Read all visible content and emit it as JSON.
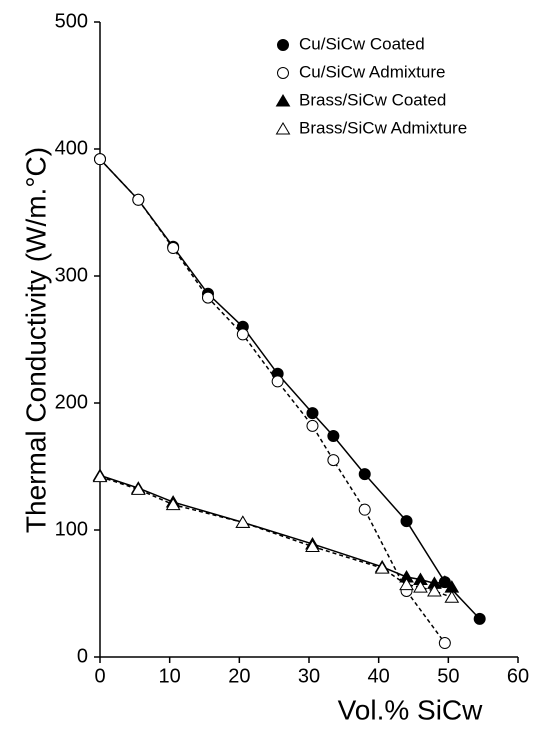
{
  "chart_data": {
    "type": "scatter",
    "x_label": "Vol.% SiCw",
    "y_label": "Thermal Conductivity (W/m.°C)",
    "xlim": [
      0,
      60
    ],
    "xticks": [
      0,
      10,
      20,
      30,
      40,
      50,
      60
    ],
    "ylim": [
      0,
      500
    ],
    "yticks": [
      0,
      100,
      200,
      300,
      400,
      500
    ],
    "legend": "upper right",
    "series": [
      {
        "name": "Cu/SiCw Coated",
        "color": "#000000",
        "marker": "circle",
        "filled": true,
        "line": "solid",
        "x": [
          0,
          5.5,
          10.5,
          15.5,
          20.5,
          25.5,
          30.5,
          33.5,
          38,
          44,
          49.5,
          54.5
        ],
        "values": [
          392,
          360,
          323,
          286,
          260,
          223,
          192,
          174,
          144,
          107,
          59,
          30
        ]
      },
      {
        "name": "Cu/SiCw Admixture",
        "color": "#000000",
        "marker": "circle",
        "filled": false,
        "line": "dashed",
        "x": [
          0,
          5.5,
          10.5,
          15.5,
          20.5,
          25.5,
          30.5,
          33.5,
          38,
          44,
          49.5
        ],
        "values": [
          392,
          360,
          322,
          283,
          254,
          217,
          182,
          155,
          116,
          52,
          11
        ]
      },
      {
        "name": "Brass/SiCw Coated",
        "color": "#000000",
        "marker": "triangle",
        "filled": true,
        "line": "solid",
        "x": [
          0,
          5.5,
          10.5,
          20.5,
          30.5,
          40.5,
          44,
          46,
          48,
          49.5,
          50.5
        ],
        "values": [
          143,
          133,
          122,
          106,
          89,
          71,
          63,
          61,
          58,
          59,
          55
        ]
      },
      {
        "name": "Brass/SiCw Admixture",
        "color": "#000000",
        "marker": "triangle",
        "filled": false,
        "line": "dashed",
        "x": [
          0,
          5.5,
          10.5,
          20.5,
          30.5,
          40.5,
          44,
          46,
          48,
          50.5
        ],
        "values": [
          142,
          132,
          120,
          106,
          87,
          70,
          57,
          55,
          52,
          47
        ]
      }
    ]
  }
}
